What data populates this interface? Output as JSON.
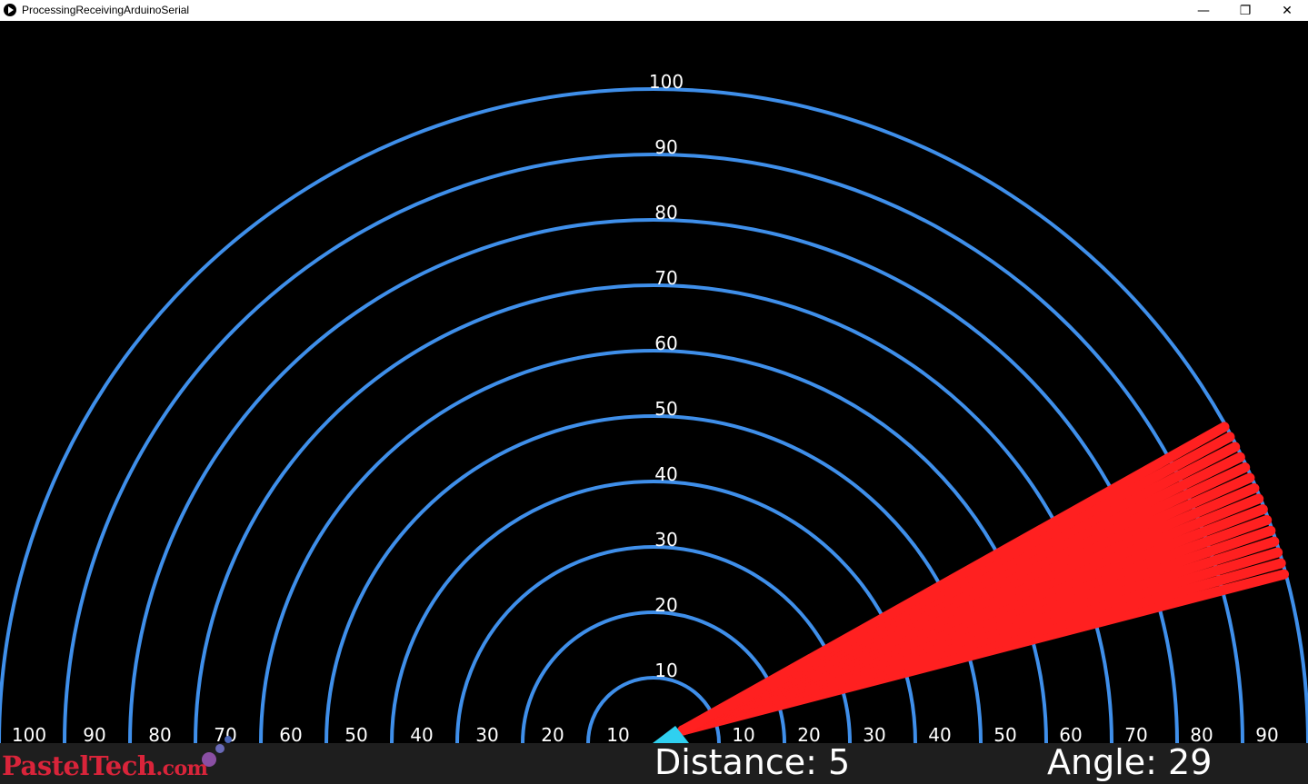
{
  "window": {
    "title": "ProcessingReceivingArduinoSerial",
    "buttons": {
      "minimize": "—",
      "maximize": "❐",
      "close": "✕"
    }
  },
  "radar": {
    "max_range": 100,
    "ring_labels": [
      "10",
      "20",
      "30",
      "40",
      "50",
      "60",
      "70",
      "80",
      "90",
      "100"
    ],
    "left_baseline_labels": [
      "100",
      "90",
      "80",
      "70",
      "60",
      "50",
      "40",
      "30",
      "20",
      "10"
    ],
    "right_baseline_labels": [
      "10",
      "20",
      "30",
      "40",
      "50",
      "60",
      "70",
      "80",
      "90"
    ],
    "sweep_angles_deg": [
      15,
      16,
      17,
      18,
      19,
      20,
      21,
      22,
      23,
      24,
      25,
      26,
      27,
      28,
      29
    ],
    "colors": {
      "background": "#000000",
      "ring": "#3f8fea",
      "sweep": "#ff2020",
      "origin": "#2fd0f0",
      "label": "#ffffff"
    }
  },
  "status": {
    "distance_text": "Distance: 5",
    "angle_text": "Angle: 29",
    "distance": 5,
    "angle": 29
  },
  "logo": {
    "main": "PastelTech",
    "suffix": ".com"
  }
}
